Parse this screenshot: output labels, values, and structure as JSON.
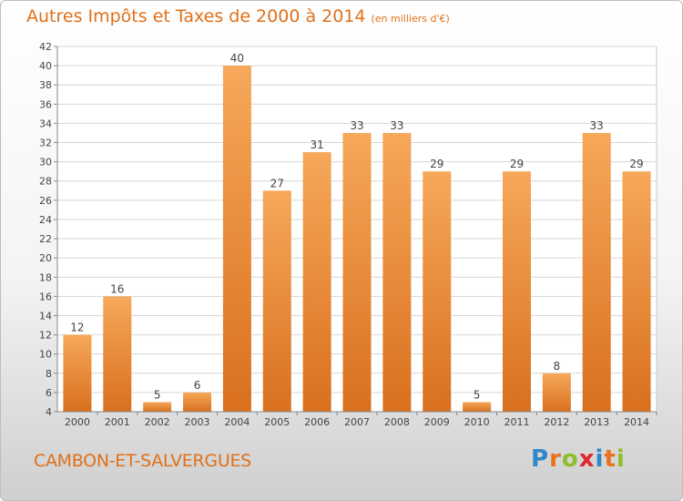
{
  "title": "Autres Impôts et Taxes de 2000 à 2014",
  "subtitle": "(en milliers d'€)",
  "commune": "CAMBON-ET-SALVERGUES",
  "logo": {
    "letters": [
      "P",
      "r",
      "o",
      "x",
      "i",
      "t",
      "i"
    ],
    "colors": [
      "#2f86c8",
      "#e8731c",
      "#8cbf2a",
      "#e3262f",
      "#2f86c8",
      "#e8731c",
      "#8cbf2a"
    ]
  },
  "colors": {
    "bar_light": "#f6a85a",
    "bar_dark": "#d9701e",
    "title": "#e07018",
    "grid": "#d6d6d6"
  },
  "chart_data": {
    "type": "bar",
    "categories": [
      "2000",
      "2001",
      "2002",
      "2003",
      "2004",
      "2005",
      "2006",
      "2007",
      "2008",
      "2009",
      "2010",
      "2011",
      "2012",
      "2013",
      "2014"
    ],
    "values": [
      12,
      16,
      5,
      6,
      40,
      27,
      31,
      33,
      33,
      29,
      5,
      29,
      8,
      33,
      29
    ],
    "ylim": [
      4,
      42
    ],
    "yticks": [
      4,
      6,
      8,
      10,
      12,
      14,
      16,
      18,
      20,
      22,
      24,
      26,
      28,
      30,
      32,
      34,
      36,
      38,
      40,
      42
    ],
    "grid": true
  }
}
